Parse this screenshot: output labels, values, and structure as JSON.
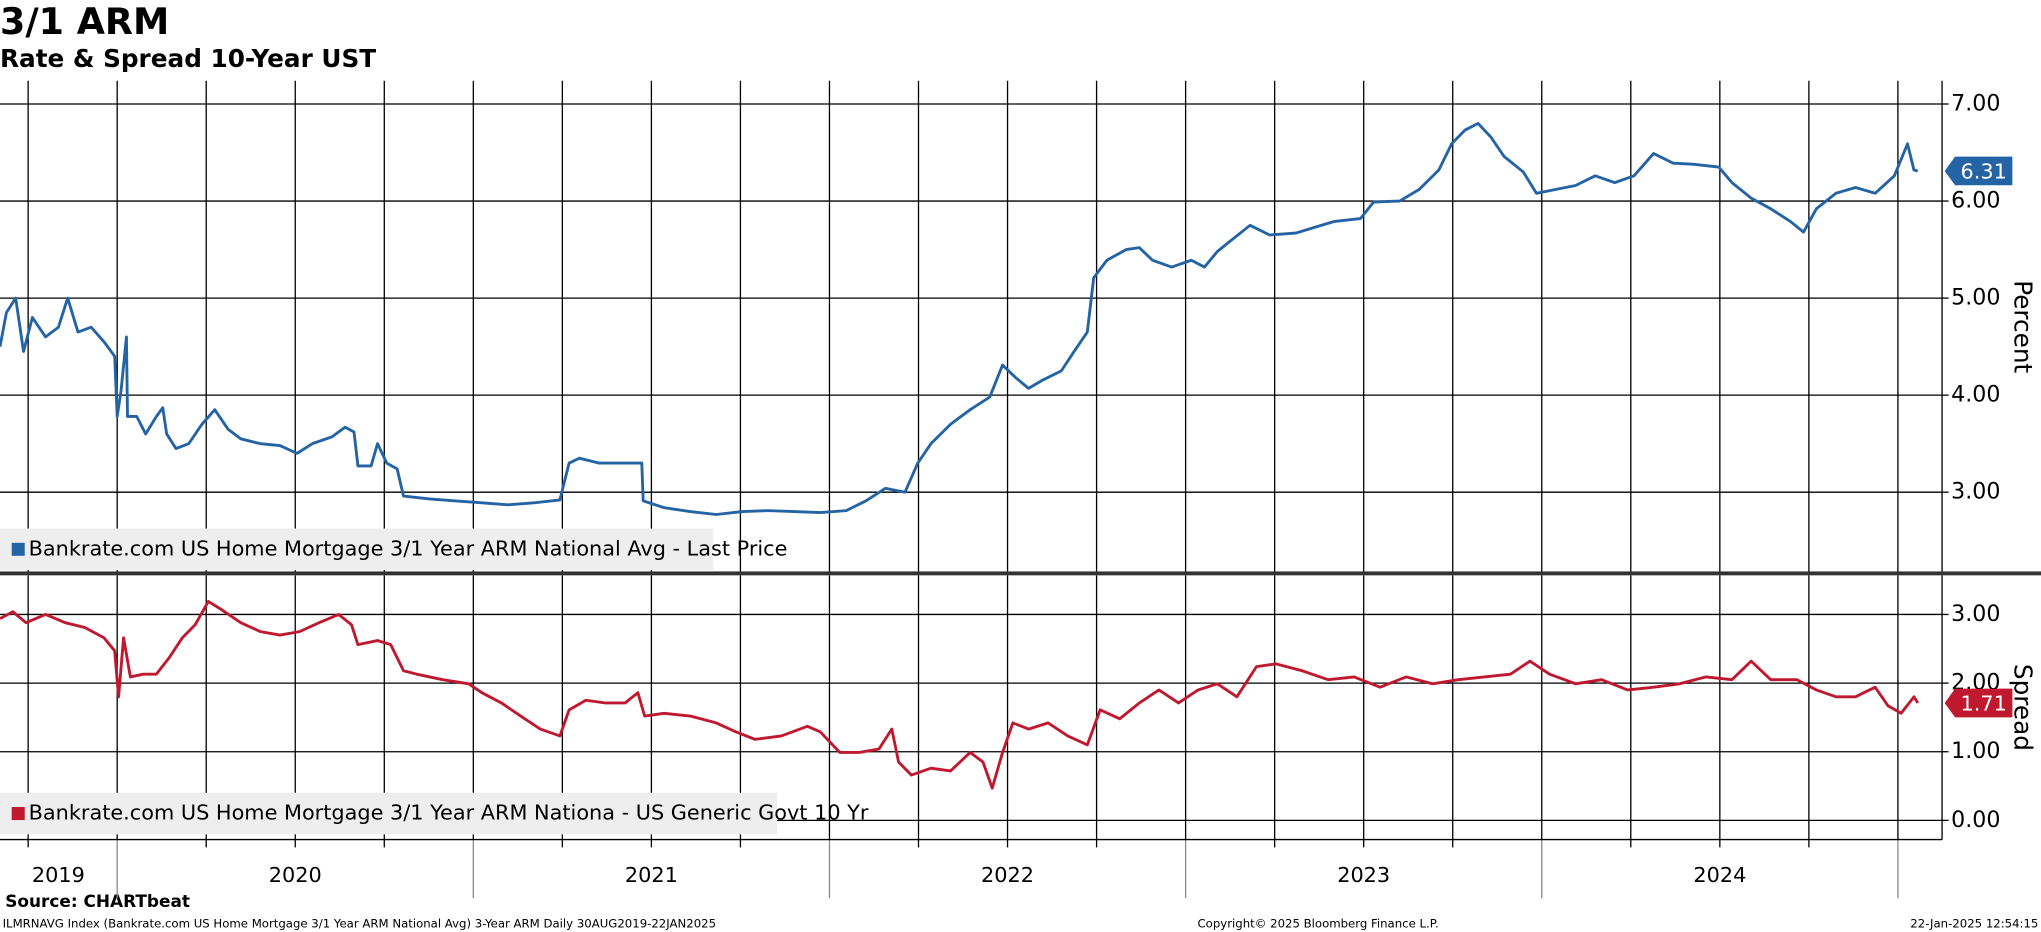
{
  "chart_data": [
    {
      "type": "line",
      "title": "3/1 ARM",
      "subtitle": "Rate & Spread 10-Year UST",
      "ylabel": "Percent",
      "xlim": [
        2019.671,
        2025.124
      ],
      "xgrid": [
        2019.75,
        2020,
        2020.25,
        2020.5,
        2020.75,
        2021,
        2021.25,
        2021.5,
        2021.75,
        2022,
        2022.25,
        2022.5,
        2022.75,
        2023,
        2023.25,
        2023.5,
        2023.75,
        2024,
        2024.25,
        2024.5,
        2024.75,
        2025
      ],
      "ylim": [
        2.17,
        7.24
      ],
      "yticks": [
        {
          "value": 3,
          "label": "3.00"
        },
        {
          "value": 4,
          "label": "4.00"
        },
        {
          "value": 5,
          "label": "5.00"
        },
        {
          "value": 6,
          "label": "6.00"
        },
        {
          "value": 7,
          "label": "7.00"
        }
      ],
      "grid": true,
      "x": [
        2019.671,
        2019.689,
        2019.715,
        2019.737,
        2019.762,
        2019.799,
        2019.835,
        2019.861,
        2019.89,
        2019.927,
        2019.963,
        2019.993,
        2020.0,
        2020.011,
        2020.026,
        2020.029,
        2020.055,
        2020.08,
        2020.11,
        2020.128,
        2020.139,
        2020.165,
        2020.201,
        2020.238,
        2020.274,
        2020.311,
        2020.347,
        2020.402,
        2020.457,
        2020.505,
        2020.548,
        2020.603,
        2020.64,
        2020.665,
        2020.676,
        2020.713,
        2020.731,
        2020.757,
        2020.786,
        2020.804,
        2020.877,
        2020.951,
        2021.024,
        2021.097,
        2021.17,
        2021.243,
        2021.269,
        2021.298,
        2021.353,
        2021.408,
        2021.473,
        2021.477,
        2021.536,
        2021.609,
        2021.682,
        2021.755,
        2021.828,
        2021.901,
        2021.974,
        2022.047,
        2022.102,
        2022.157,
        2022.212,
        2022.248,
        2022.285,
        2022.34,
        2022.395,
        2022.45,
        2022.486,
        2022.523,
        2022.559,
        2022.596,
        2022.651,
        2022.687,
        2022.724,
        2022.742,
        2022.779,
        2022.833,
        2022.87,
        2022.907,
        2022.961,
        2023.016,
        2023.053,
        2023.089,
        2023.126,
        2023.181,
        2023.236,
        2023.309,
        2023.363,
        2023.418,
        2023.491,
        2023.528,
        2023.601,
        2023.656,
        2023.711,
        2023.747,
        2023.784,
        2023.821,
        2023.857,
        2023.894,
        2023.948,
        2023.985,
        2024.04,
        2024.095,
        2024.15,
        2024.205,
        2024.259,
        2024.314,
        2024.369,
        2024.424,
        2024.497,
        2024.534,
        2024.588,
        2024.643,
        2024.698,
        2024.735,
        2024.771,
        2024.826,
        2024.881,
        2024.936,
        2024.99,
        2025.027,
        2025.045,
        2025.056
      ],
      "series": [
        {
          "name": "Bankrate.com US Home Mortgage 3/1 Year ARM National Avg - Last Price",
          "color": "#2463a4",
          "values": [
            4.5,
            4.85,
            5.0,
            4.45,
            4.8,
            4.6,
            4.7,
            5.0,
            4.65,
            4.7,
            4.55,
            4.4,
            3.78,
            4.05,
            4.6,
            3.78,
            3.78,
            3.6,
            3.78,
            3.87,
            3.6,
            3.45,
            3.5,
            3.7,
            3.85,
            3.65,
            3.55,
            3.5,
            3.48,
            3.4,
            3.5,
            3.57,
            3.67,
            3.62,
            3.27,
            3.27,
            3.5,
            3.3,
            3.24,
            2.96,
            2.93,
            2.91,
            2.89,
            2.87,
            2.89,
            2.92,
            3.3,
            3.35,
            3.3,
            3.3,
            3.3,
            2.91,
            2.84,
            2.8,
            2.77,
            2.8,
            2.81,
            2.8,
            2.79,
            2.81,
            2.91,
            3.04,
            3.0,
            3.3,
            3.5,
            3.7,
            3.85,
            3.98,
            4.31,
            4.18,
            4.07,
            4.15,
            4.25,
            4.45,
            4.65,
            5.21,
            5.39,
            5.5,
            5.52,
            5.39,
            5.32,
            5.39,
            5.32,
            5.48,
            5.59,
            5.75,
            5.65,
            5.67,
            5.73,
            5.79,
            5.82,
            5.99,
            6.0,
            6.12,
            6.32,
            6.59,
            6.73,
            6.8,
            6.66,
            6.46,
            6.3,
            6.08,
            6.12,
            6.16,
            6.26,
            6.19,
            6.26,
            6.49,
            6.39,
            6.38,
            6.35,
            6.19,
            6.03,
            5.92,
            5.79,
            5.68,
            5.92,
            6.08,
            6.14,
            6.08,
            6.26,
            6.59,
            6.32,
            6.31
          ]
        }
      ]
    },
    {
      "type": "line",
      "ylabel": "Spread",
      "xlim": [
        2019.671,
        2025.124
      ],
      "xgrid": [
        2019.75,
        2020,
        2020.25,
        2020.5,
        2020.75,
        2021,
        2021.25,
        2021.5,
        2021.75,
        2022,
        2022.25,
        2022.5,
        2022.75,
        2023,
        2023.25,
        2023.5,
        2023.75,
        2024,
        2024.25,
        2024.5,
        2024.75,
        2025
      ],
      "xticks": [
        {
          "value": 2019.835,
          "label": "2019"
        },
        {
          "value": 2020.5,
          "label": "2020"
        },
        {
          "value": 2021.5,
          "label": "2021"
        },
        {
          "value": 2022.5,
          "label": "2022"
        },
        {
          "value": 2023.5,
          "label": "2023"
        },
        {
          "value": 2024.5,
          "label": "2024"
        }
      ],
      "ylim": [
        -0.28,
        3.57
      ],
      "yticks": [
        {
          "value": 0,
          "label": "0.00"
        },
        {
          "value": 1,
          "label": "1.00"
        },
        {
          "value": 2,
          "label": "2.00"
        },
        {
          "value": 3,
          "label": "3.00"
        }
      ],
      "grid": true,
      "x": [
        2019.671,
        2019.707,
        2019.744,
        2019.799,
        2019.854,
        2019.909,
        2019.963,
        2019.993,
        2020.004,
        2020.018,
        2020.037,
        2020.073,
        2020.11,
        2020.146,
        2020.183,
        2020.219,
        2020.256,
        2020.293,
        2020.347,
        2020.402,
        2020.457,
        2020.512,
        2020.567,
        2020.622,
        2020.658,
        2020.676,
        2020.731,
        2020.768,
        2020.804,
        2020.841,
        2020.914,
        2020.987,
        2021.024,
        2021.079,
        2021.133,
        2021.188,
        2021.243,
        2021.269,
        2021.316,
        2021.371,
        2021.426,
        2021.462,
        2021.481,
        2021.536,
        2021.609,
        2021.682,
        2021.737,
        2021.791,
        2021.865,
        2021.938,
        2021.974,
        2022.029,
        2022.084,
        2022.139,
        2022.175,
        2022.194,
        2022.23,
        2022.285,
        2022.34,
        2022.395,
        2022.431,
        2022.457,
        2022.486,
        2022.515,
        2022.559,
        2022.614,
        2022.669,
        2022.724,
        2022.76,
        2022.815,
        2022.87,
        2022.925,
        2022.98,
        2023.035,
        2023.089,
        2023.144,
        2023.199,
        2023.254,
        2023.327,
        2023.4,
        2023.473,
        2023.546,
        2023.619,
        2023.693,
        2023.766,
        2023.839,
        2023.912,
        2023.967,
        2024.022,
        2024.095,
        2024.168,
        2024.241,
        2024.314,
        2024.387,
        2024.461,
        2024.534,
        2024.588,
        2024.643,
        2024.716,
        2024.771,
        2024.826,
        2024.881,
        2024.936,
        2024.972,
        2025.009,
        2025.045,
        2025.056
      ],
      "series": [
        {
          "name": "Bankrate.com US Home Mortgage 3/1 Year ARM Nationa - US Generic Govt 10 Yr",
          "color": "#c0182e",
          "values": [
            2.94,
            3.04,
            2.88,
            3.0,
            2.88,
            2.81,
            2.66,
            2.47,
            1.8,
            2.66,
            2.09,
            2.13,
            2.13,
            2.37,
            2.66,
            2.85,
            3.19,
            3.07,
            2.88,
            2.75,
            2.7,
            2.75,
            2.88,
            3.0,
            2.85,
            2.56,
            2.62,
            2.56,
            2.18,
            2.13,
            2.05,
            1.99,
            1.86,
            1.71,
            1.52,
            1.33,
            1.23,
            1.61,
            1.75,
            1.71,
            1.71,
            1.86,
            1.52,
            1.56,
            1.52,
            1.42,
            1.29,
            1.18,
            1.23,
            1.37,
            1.29,
            0.99,
            0.99,
            1.04,
            1.33,
            0.85,
            0.66,
            0.76,
            0.72,
            0.99,
            0.85,
            0.47,
            0.99,
            1.42,
            1.33,
            1.42,
            1.23,
            1.1,
            1.61,
            1.48,
            1.71,
            1.9,
            1.71,
            1.9,
            1.99,
            1.8,
            2.24,
            2.28,
            2.18,
            2.05,
            2.09,
            1.94,
            2.09,
            1.99,
            2.05,
            2.09,
            2.13,
            2.32,
            2.13,
            1.99,
            2.05,
            1.9,
            1.94,
            1.99,
            2.09,
            2.05,
            2.32,
            2.05,
            2.05,
            1.9,
            1.8,
            1.8,
            1.94,
            1.67,
            1.56,
            1.8,
            1.71
          ]
        }
      ]
    }
  ],
  "footer": {
    "source": "Source: CHARTbeat",
    "description": "ILMRNAVG Index (Bankrate.com US Home Mortgage 3/1 Year ARM National Avg) 3-Year ARM  Daily 30AUG2019-22JAN2025",
    "copyright": "Copyright© 2025 Bloomberg Finance L.P.",
    "timestamp": "22-Jan-2025 12:54:15"
  }
}
